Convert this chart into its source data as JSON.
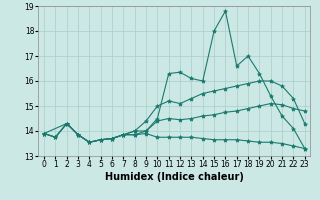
{
  "xlabel": "Humidex (Indice chaleur)",
  "ylabel": "",
  "background_color": "#cce8e4",
  "grid_color": "#aacccc",
  "line_color": "#1a7a6e",
  "xlim": [
    -0.5,
    23.5
  ],
  "ylim": [
    13,
    19
  ],
  "yticks": [
    13,
    14,
    15,
    16,
    17,
    18,
    19
  ],
  "xticks": [
    0,
    1,
    2,
    3,
    4,
    5,
    6,
    7,
    8,
    9,
    10,
    11,
    12,
    13,
    14,
    15,
    16,
    17,
    18,
    19,
    20,
    21,
    22,
    23
  ],
  "line1_x": [
    0,
    1,
    2,
    3,
    4,
    5,
    6,
    7,
    8,
    9,
    10,
    11,
    12,
    13,
    14,
    15,
    16,
    17,
    18,
    19,
    20,
    21,
    22,
    23
  ],
  "line1_y": [
    13.9,
    13.75,
    14.3,
    13.85,
    13.55,
    13.65,
    13.7,
    13.85,
    13.85,
    14.0,
    14.4,
    14.5,
    14.45,
    14.5,
    14.6,
    14.65,
    14.75,
    14.8,
    14.9,
    15.0,
    15.1,
    15.05,
    14.9,
    14.8
  ],
  "line2_x": [
    0,
    1,
    2,
    3,
    4,
    5,
    6,
    7,
    8,
    9,
    10,
    11,
    12,
    13,
    14,
    15,
    16,
    17,
    18,
    19,
    20,
    21,
    22,
    23
  ],
  "line2_y": [
    13.9,
    13.75,
    14.3,
    13.85,
    13.55,
    13.65,
    13.7,
    13.85,
    14.0,
    14.4,
    15.0,
    15.2,
    15.1,
    15.3,
    15.5,
    15.6,
    15.7,
    15.8,
    15.9,
    16.0,
    16.0,
    15.8,
    15.3,
    14.3
  ],
  "line3_x": [
    0,
    2,
    3,
    4,
    5,
    6,
    7,
    8,
    9,
    10,
    11,
    12,
    13,
    14,
    15,
    16,
    17,
    18,
    19,
    20,
    21,
    22,
    23
  ],
  "line3_y": [
    13.9,
    14.3,
    13.85,
    13.55,
    13.65,
    13.7,
    13.85,
    14.0,
    14.0,
    14.5,
    16.3,
    16.35,
    16.1,
    16.0,
    18.0,
    18.8,
    16.6,
    17.0,
    16.3,
    15.4,
    14.6,
    14.1,
    13.3
  ],
  "line4_x": [
    0,
    1,
    2,
    3,
    4,
    5,
    6,
    7,
    8,
    9,
    10,
    11,
    12,
    13,
    14,
    15,
    16,
    17,
    18,
    19,
    20,
    21,
    22,
    23
  ],
  "line4_y": [
    13.9,
    13.75,
    14.3,
    13.85,
    13.55,
    13.65,
    13.7,
    13.85,
    13.85,
    13.9,
    13.75,
    13.75,
    13.75,
    13.75,
    13.7,
    13.65,
    13.65,
    13.65,
    13.6,
    13.55,
    13.55,
    13.5,
    13.4,
    13.3
  ],
  "marker": "*",
  "markersize": 3,
  "linewidth": 0.8,
  "xlabel_fontsize": 7,
  "tick_fontsize": 5.5
}
